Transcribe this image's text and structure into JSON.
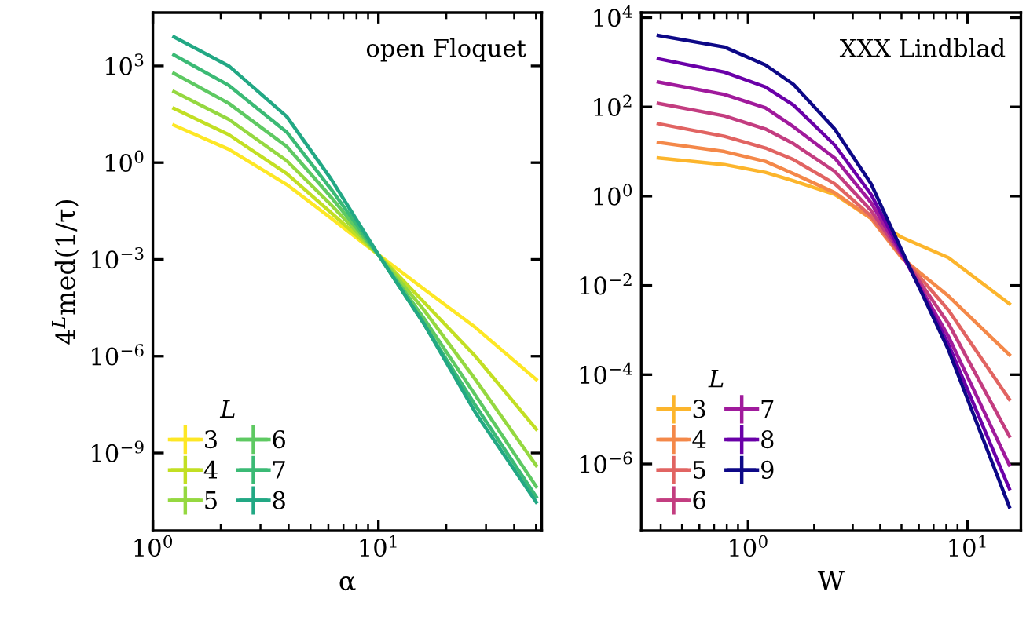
{
  "chart_data": [
    {
      "type": "line",
      "title": "open Floquet",
      "xlabel": "α",
      "ylabel": "4$^{L}$med(1/τ)",
      "legend_title": "L",
      "legend": "bottom left",
      "log": "xy",
      "marker": "none",
      "line_style": "solid",
      "x": [
        1.24,
        2.17,
        3.92,
        6.17,
        10,
        15.8,
        26.9,
        50.1
      ],
      "xlim": [
        1,
        53
      ],
      "ylim": [
        3.9e-12,
        45000.0
      ],
      "xticks": [
        {
          "value": 1,
          "label": "10$^{0}$"
        },
        {
          "value": 2,
          "label": null
        },
        {
          "value": 3,
          "label": null
        },
        {
          "value": 4,
          "label": null
        },
        {
          "value": 5,
          "label": null
        },
        {
          "value": 6,
          "label": null
        },
        {
          "value": 7,
          "label": null
        },
        {
          "value": 8,
          "label": null
        },
        {
          "value": 9,
          "label": null
        },
        {
          "value": 10,
          "label": "10$^{1}$"
        },
        {
          "value": 20,
          "label": null
        },
        {
          "value": 30,
          "label": null
        },
        {
          "value": 40,
          "label": null
        },
        {
          "value": 50,
          "label": null
        }
      ],
      "yticks": [
        {
          "value": 1000,
          "label": "10$^{3}$"
        },
        {
          "value": 1,
          "label": "10$^{0}$"
        },
        {
          "value": 0.001,
          "label": "10$^{−3}$"
        },
        {
          "value": 1e-06,
          "label": "10$^{−6}$"
        },
        {
          "value": 1e-09,
          "label": "10$^{−9}$"
        }
      ],
      "series": [
        {
          "name": "3",
          "color": "#fde725",
          "values": [
            14.5,
            2.6,
            0.21,
            0.019,
            0.0014,
            0.000126,
            7.8e-06,
            1.9e-07
          ]
        },
        {
          "name": "4",
          "color": "#c2df23",
          "values": [
            48,
            7.4,
            0.46,
            0.028,
            0.0014,
            5e-05,
            1e-06,
            5.5e-09
          ]
        },
        {
          "name": "5",
          "color": "#95d840",
          "values": [
            160,
            22,
            1.15,
            0.049,
            0.0014,
            2.9e-05,
            1.9e-07,
            4.1e-10
          ]
        },
        {
          "name": "6",
          "color": "#5ec962",
          "values": [
            590,
            69,
            3.2,
            0.085,
            0.0014,
            1.6e-05,
            6.2e-08,
            9.1e-11
          ]
        },
        {
          "name": "7",
          "color": "#3bba75",
          "values": [
            2200,
            250,
            8.9,
            0.15,
            0.0014,
            1.1e-05,
            3e-08,
            4.4e-11
          ]
        },
        {
          "name": "8",
          "color": "#22a884",
          "values": [
            7900,
            1000,
            27,
            0.31,
            0.0014,
            1.1e-05,
            1.8e-08,
            3e-11
          ]
        }
      ]
    },
    {
      "type": "line",
      "title": "XXX Lindblad",
      "xlabel": "W",
      "legend_title": "L",
      "legend": "bottom left",
      "log": "xy",
      "marker": "none",
      "line_style": "solid",
      "x": [
        0.39,
        0.78,
        1.2,
        1.61,
        2.48,
        3.63,
        5.0,
        8.18,
        15.5
      ],
      "xlim": [
        0.326,
        17.5
      ],
      "ylim": [
        3.2e-08,
        13000.0
      ],
      "xticks": [
        {
          "value": 0.4,
          "label": null
        },
        {
          "value": 0.5,
          "label": null
        },
        {
          "value": 0.6,
          "label": null
        },
        {
          "value": 0.7,
          "label": null
        },
        {
          "value": 0.8,
          "label": null
        },
        {
          "value": 0.9,
          "label": null
        },
        {
          "value": 1,
          "label": "10$^{0}$"
        },
        {
          "value": 2,
          "label": null
        },
        {
          "value": 3,
          "label": null
        },
        {
          "value": 4,
          "label": null
        },
        {
          "value": 5,
          "label": null
        },
        {
          "value": 6,
          "label": null
        },
        {
          "value": 7,
          "label": null
        },
        {
          "value": 8,
          "label": null
        },
        {
          "value": 9,
          "label": null
        },
        {
          "value": 10,
          "label": "10$^{1}$"
        }
      ],
      "yticks": [
        {
          "value": 10000,
          "label": "10$^{4}$"
        },
        {
          "value": 100,
          "label": "10$^{2}$"
        },
        {
          "value": 1,
          "label": "10$^{0}$"
        },
        {
          "value": 0.01,
          "label": "10$^{−2}$"
        },
        {
          "value": 0.0001,
          "label": "10$^{−4}$"
        },
        {
          "value": 1e-06,
          "label": "10$^{−6}$"
        }
      ],
      "series": [
        {
          "name": "3",
          "color": "#fcb52c",
          "values": [
            7.2,
            5.1,
            3.4,
            2.2,
            1.1,
            0.32,
            0.12,
            0.042,
            0.0039
          ]
        },
        {
          "name": "4",
          "color": "#f48849",
          "values": [
            16,
            10,
            6.0,
            3.2,
            1.2,
            0.32,
            0.042,
            0.0058,
            0.00028
          ]
        },
        {
          "name": "5",
          "color": "#e16462",
          "values": [
            42,
            22,
            12,
            6.6,
            1.9,
            0.36,
            0.046,
            0.0028,
            2.8e-05
          ]
        },
        {
          "name": "6",
          "color": "#c33d80",
          "values": [
            120,
            63,
            32,
            15,
            3.6,
            0.48,
            0.048,
            0.0014,
            4.2e-06
          ]
        },
        {
          "name": "7",
          "color": "#a01a9c",
          "values": [
            360,
            190,
            95,
            36,
            7.2,
            0.72,
            0.051,
            0.00072,
            9.5e-07
          ]
        },
        {
          "name": "8",
          "color": "#6a00a8",
          "values": [
            1200,
            600,
            280,
            110,
            14,
            1.1,
            0.055,
            0.00048,
            2.8e-07
          ]
        },
        {
          "name": "9",
          "color": "#0d0887",
          "values": [
            4000,
            2200,
            870,
            320,
            32,
            1.9,
            0.063,
            0.00036,
            1.1e-07
          ]
        }
      ]
    }
  ]
}
